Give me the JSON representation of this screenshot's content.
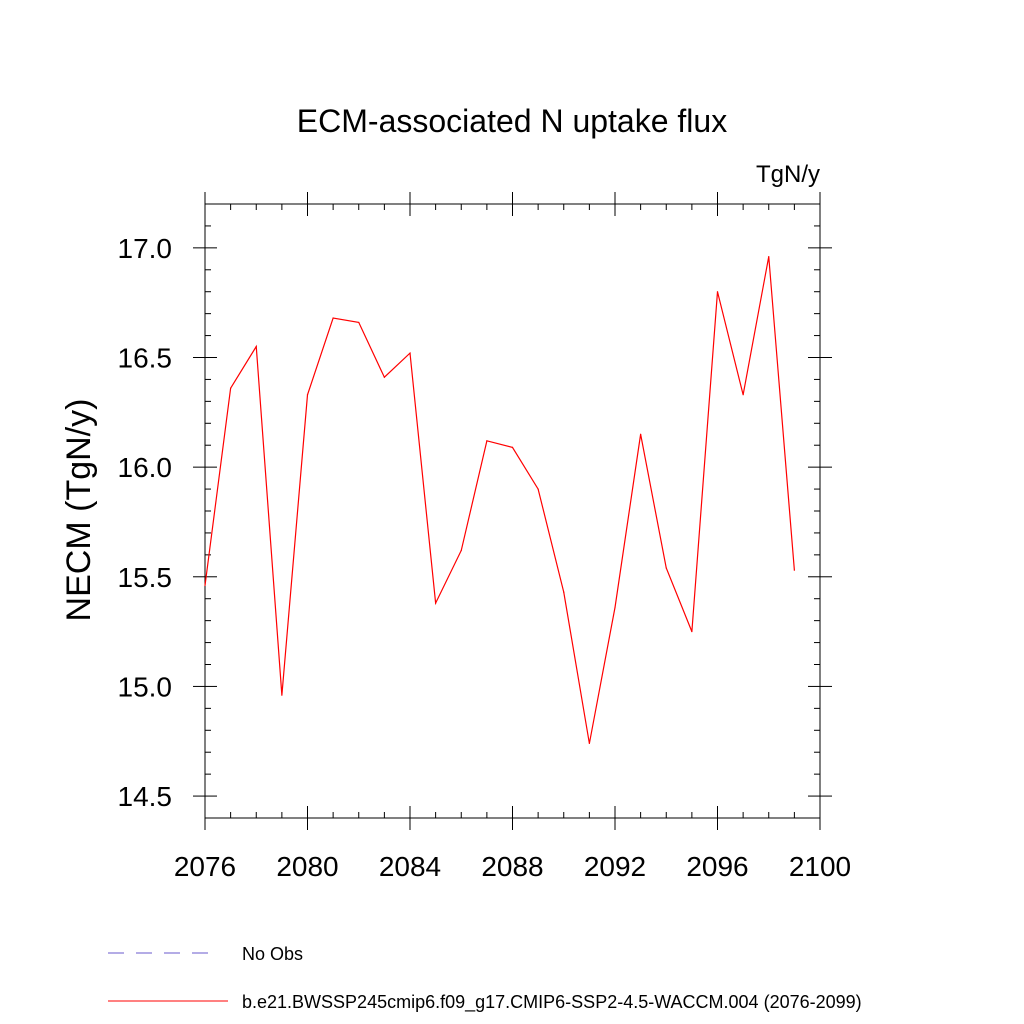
{
  "chart_data": {
    "type": "line",
    "title": "ECM-associated N uptake flux",
    "units_label": "TgN/y",
    "ylabel": "NECM  (TgN/y)",
    "xlabel": "",
    "xlim": [
      2076,
      2100
    ],
    "ylim": [
      14.4,
      17.2
    ],
    "x_ticks": [
      2076,
      2080,
      2084,
      2088,
      2092,
      2096,
      2100
    ],
    "x_tick_labels": [
      "2076",
      "2080",
      "2084",
      "2088",
      "2092",
      "2096",
      "2100"
    ],
    "y_ticks": [
      14.5,
      15.0,
      15.5,
      16.0,
      16.5,
      17.0
    ],
    "y_tick_labels": [
      "14.5",
      "15.0",
      "15.5",
      "16.0",
      "16.5",
      "17.0"
    ],
    "grid": false,
    "series": [
      {
        "name": "b.e21.BWSSP245cmip6.f09_g17.CMIP6-SSP2-4.5-WACCM.004 (2076-2099)",
        "color": "#ff0000",
        "x": [
          2076,
          2077,
          2078,
          2079,
          2080,
          2081,
          2082,
          2083,
          2084,
          2085,
          2086,
          2087,
          2088,
          2089,
          2090,
          2091,
          2092,
          2093,
          2094,
          2095,
          2096,
          2097,
          2098,
          2099
        ],
        "values": [
          15.46,
          16.36,
          16.55,
          14.96,
          16.33,
          16.68,
          16.66,
          16.41,
          16.52,
          15.38,
          15.62,
          16.12,
          16.09,
          15.9,
          15.43,
          14.74,
          15.36,
          16.15,
          15.54,
          15.25,
          16.8,
          16.33,
          16.96,
          15.53
        ]
      }
    ],
    "legend": {
      "placement": "bottom-left",
      "entries": [
        {
          "label": "No Obs",
          "color": "#6a5acd",
          "style": "dashed"
        },
        {
          "label": "b.e21.BWSSP245cmip6.f09_g17.CMIP6-SSP2-4.5-WACCM.004 (2076-2099)",
          "color": "#ff0000",
          "style": "solid"
        }
      ]
    }
  }
}
